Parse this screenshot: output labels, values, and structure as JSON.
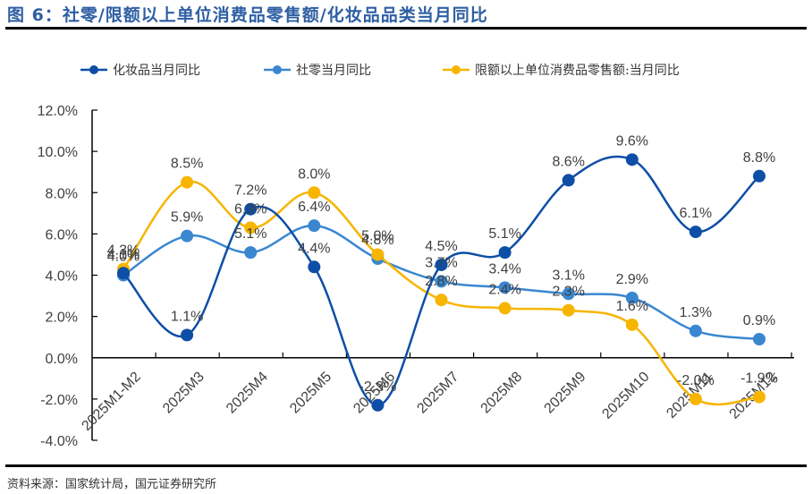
{
  "figure_title": "图 6：社零/限额以上单位消费品零售额/化妆品品类当月同比",
  "source": "资料来源：国家统计局，国元证券研究所",
  "chart_data": {
    "type": "line",
    "title": "图 6：社零/限额以上单位消费品零售额/化妆品品类当月同比",
    "xlabel": "",
    "ylabel": "",
    "ylim": [
      -4.0,
      12.0
    ],
    "ytick_step": 2.0,
    "yticks": [
      "12.0%",
      "10.0%",
      "8.0%",
      "6.0%",
      "4.0%",
      "2.0%",
      "0.0%",
      "-2.0%",
      "-4.0%"
    ],
    "legend_position": "top",
    "grid": false,
    "categories": [
      "2025M1-M2",
      "2025M3",
      "2025M4",
      "2025M5",
      "2025M6",
      "2025M7",
      "2025M8",
      "2025M9",
      "2025M10",
      "2025M11",
      "2025M12"
    ],
    "series": [
      {
        "name": "化妆品当月同比",
        "color": "#0d4ea6",
        "values": [
          4.1,
          1.1,
          7.2,
          4.4,
          -2.3,
          4.5,
          5.1,
          8.6,
          9.6,
          6.1,
          8.8
        ]
      },
      {
        "name": "社零当月同比",
        "color": "#3a87d0",
        "values": [
          4.0,
          5.9,
          5.1,
          6.4,
          4.8,
          3.7,
          3.4,
          3.1,
          2.9,
          1.3,
          0.9
        ]
      },
      {
        "name": "限额以上单位消费品零售额:当月同比",
        "color": "#f7b500",
        "values": [
          4.3,
          8.5,
          6.3,
          8.0,
          5.0,
          2.8,
          2.4,
          2.3,
          1.6,
          -2.0,
          -1.9
        ]
      }
    ]
  }
}
